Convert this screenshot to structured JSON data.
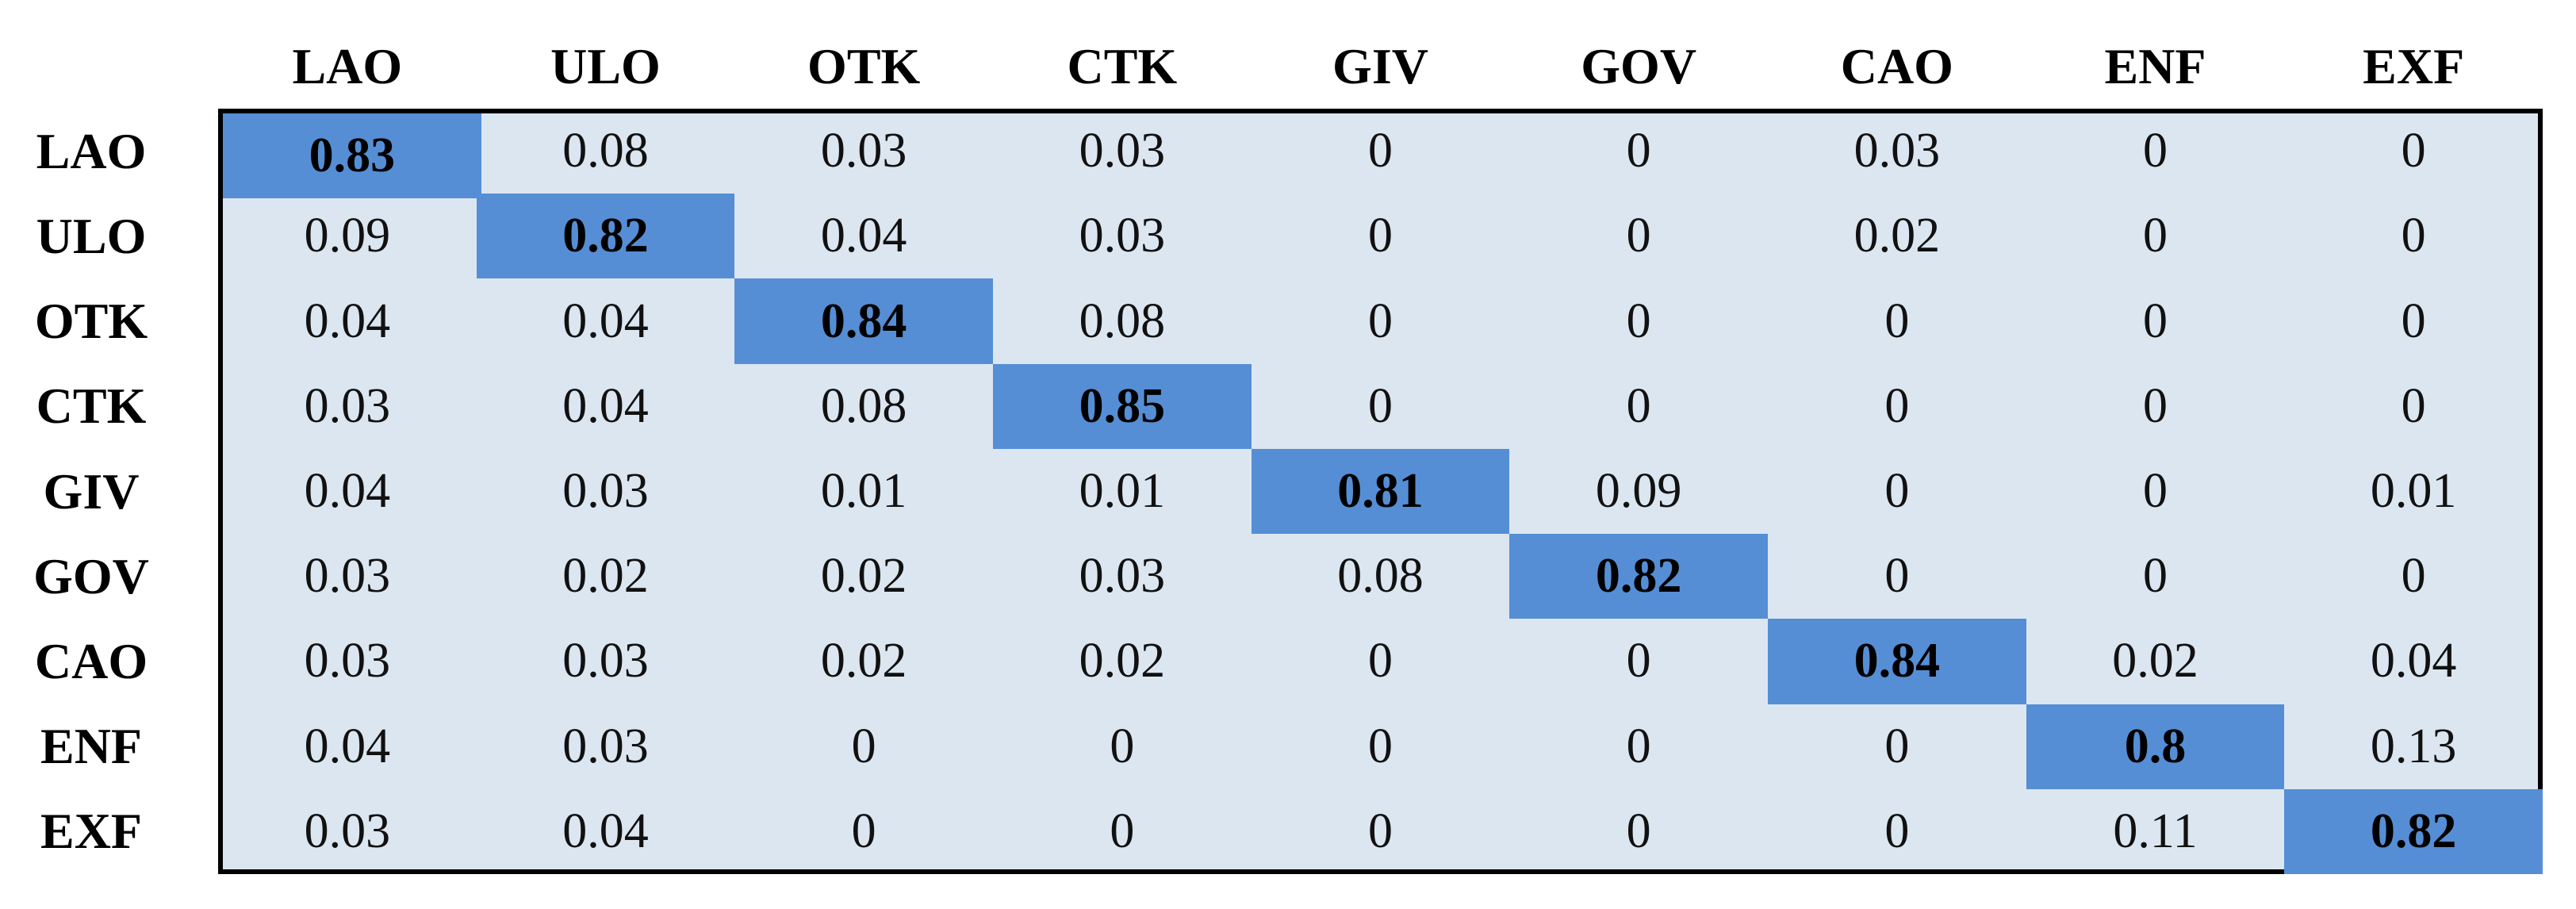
{
  "table": {
    "columns": [
      "LAO",
      "ULO",
      "OTK",
      "CTK",
      "GIV",
      "GOV",
      "CAO",
      "ENF",
      "EXF"
    ],
    "rows": [
      {
        "label": "LAO",
        "values": [
          0.83,
          0.08,
          0.03,
          0.03,
          0,
          0,
          0.03,
          0,
          0
        ]
      },
      {
        "label": "ULO",
        "values": [
          0.09,
          0.82,
          0.04,
          0.03,
          0,
          0,
          0.02,
          0,
          0
        ]
      },
      {
        "label": "OTK",
        "values": [
          0.04,
          0.04,
          0.84,
          0.08,
          0,
          0,
          0,
          0,
          0
        ]
      },
      {
        "label": "CTK",
        "values": [
          0.03,
          0.04,
          0.08,
          0.85,
          0,
          0,
          0,
          0,
          0
        ]
      },
      {
        "label": "GIV",
        "values": [
          0.04,
          0.03,
          0.01,
          0.01,
          0.81,
          0.09,
          0,
          0,
          0.01
        ]
      },
      {
        "label": "GOV",
        "values": [
          0.03,
          0.02,
          0.02,
          0.03,
          0.08,
          0.82,
          0,
          0,
          0
        ]
      },
      {
        "label": "CAO",
        "values": [
          0.03,
          0.03,
          0.02,
          0.02,
          0,
          0,
          0.84,
          0.02,
          0.04
        ]
      },
      {
        "label": "ENF",
        "values": [
          0.04,
          0.03,
          0,
          0,
          0,
          0,
          0,
          0.8,
          0.13
        ]
      },
      {
        "label": "EXF",
        "values": [
          0.03,
          0.04,
          0,
          0,
          0,
          0,
          0,
          0.11,
          0.82
        ]
      }
    ]
  }
}
